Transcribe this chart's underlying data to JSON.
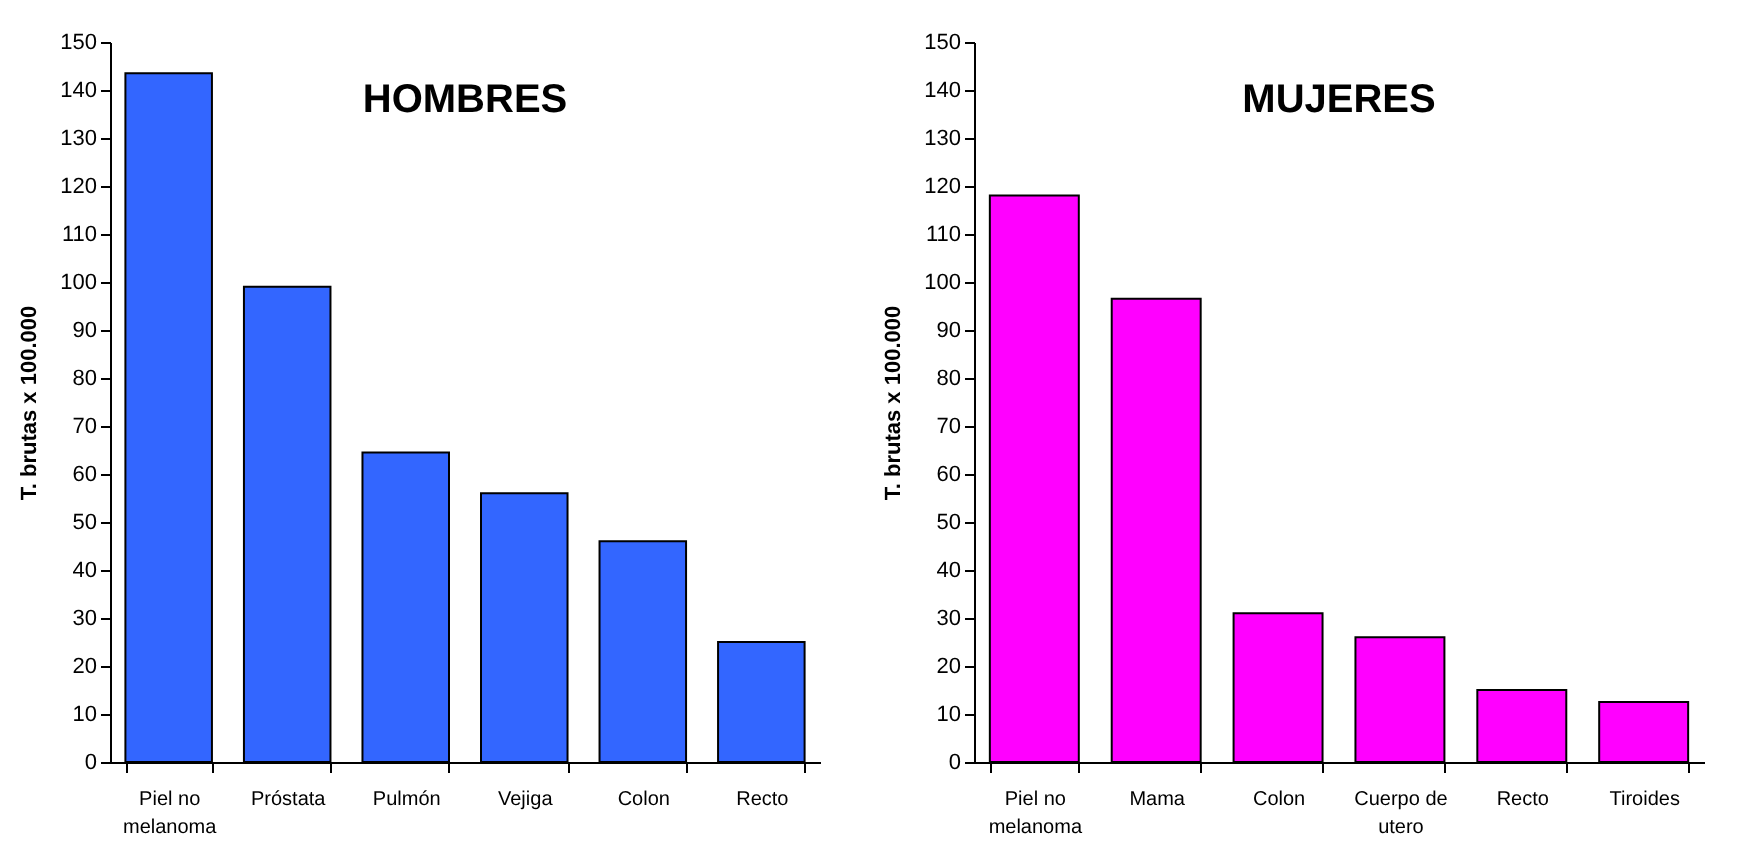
{
  "chart_data": [
    {
      "type": "bar",
      "title": "HOMBRES",
      "ylabel": "T. brutas x 100.000",
      "categories": [
        "Piel no melanoma",
        "Próstata",
        "Pulmón",
        "Vejiga",
        "Colon",
        "Recto"
      ],
      "values": [
        143.5,
        99,
        64.5,
        56,
        46,
        25
      ],
      "color": "#3366ff",
      "ylim": [
        0,
        150
      ],
      "yticks": [
        0,
        10,
        20,
        30,
        40,
        50,
        60,
        70,
        80,
        90,
        100,
        110,
        120,
        130,
        140,
        150
      ],
      "grid": false
    },
    {
      "type": "bar",
      "title": "MUJERES",
      "ylabel": "T. brutas x 100.000",
      "categories": [
        "Piel no melanoma",
        "Mama",
        "Colon",
        "Cuerpo de utero",
        "Recto",
        "Tiroides"
      ],
      "values": [
        118,
        96.5,
        31,
        26,
        15,
        12.5
      ],
      "color": "#ff00ff",
      "ylim": [
        0,
        150
      ],
      "yticks": [
        0,
        10,
        20,
        30,
        40,
        50,
        60,
        70,
        80,
        90,
        100,
        110,
        120,
        130,
        140,
        150
      ],
      "grid": false
    }
  ]
}
